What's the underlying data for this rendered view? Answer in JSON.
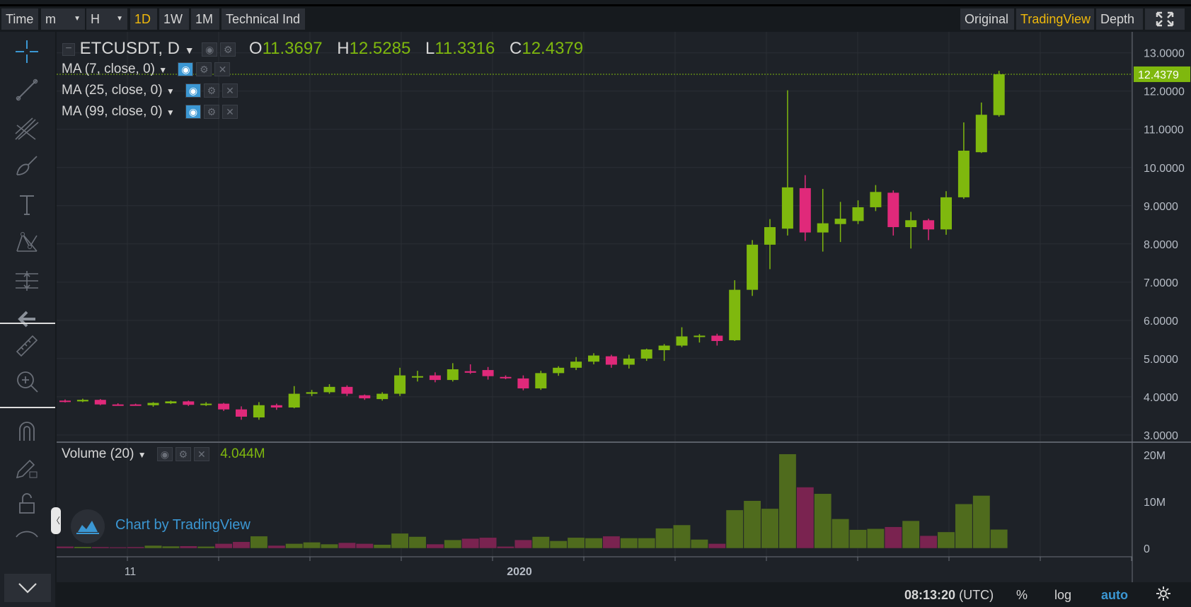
{
  "toolbar": {
    "time": "Time",
    "minute": "m",
    "hour": "H",
    "intervals": [
      "1D",
      "1W",
      "1M"
    ],
    "technical": "Technical Ind",
    "views": [
      "Original",
      "TradingView",
      "Depth"
    ]
  },
  "legend": {
    "symbol": "ETCUSDT, D",
    "o_label": "O",
    "o_value": "11.3697",
    "h_label": "H",
    "h_value": "12.5285",
    "l_label": "L",
    "l_value": "11.3316",
    "c_label": "C",
    "c_value": "12.4379",
    "ma": [
      "MA (7, close, 0)",
      "MA (25, close, 0)",
      "MA (99, close, 0)"
    ],
    "volume_label": "Volume (20)",
    "volume_value": "4.044M"
  },
  "branding": "Chart by TradingView",
  "footer": {
    "clock": "08:13:20",
    "tz": "(UTC)",
    "percent": "%",
    "log": "log",
    "auto": "auto"
  },
  "colors": {
    "up": "#7fb80e",
    "down": "#e0297a",
    "up_volume": "#4f6b1d",
    "down_volume": "#7a2350",
    "accent": "#f0b90b",
    "blue": "#3b97d3"
  },
  "chart_data": {
    "type": "candlestick",
    "symbol": "ETCUSDT",
    "interval": "D",
    "price_axis": {
      "ticks": [
        "13.0000",
        "12.0000",
        "11.0000",
        "10.0000",
        "9.0000",
        "8.0000",
        "7.0000",
        "6.0000",
        "5.0000",
        "4.0000",
        "3.0000"
      ],
      "range": [
        2.85,
        13.55
      ],
      "last_price_label": "12.4379"
    },
    "volume_axis": {
      "ticks": [
        "20M",
        "10M",
        "0"
      ],
      "range": [
        0,
        20000000
      ]
    },
    "time_axis": {
      "labels": [
        "11",
        "2020"
      ]
    },
    "candles": [
      {
        "o": 3.9,
        "h": 3.93,
        "l": 3.85,
        "c": 3.87,
        "v": 400000
      },
      {
        "o": 3.88,
        "h": 3.95,
        "l": 3.86,
        "c": 3.92,
        "v": 350000
      },
      {
        "o": 3.92,
        "h": 3.94,
        "l": 3.78,
        "c": 3.8,
        "v": 300000
      },
      {
        "o": 3.8,
        "h": 3.83,
        "l": 3.77,
        "c": 3.79,
        "v": 250000
      },
      {
        "o": 3.8,
        "h": 3.82,
        "l": 3.77,
        "c": 3.79,
        "v": 300000
      },
      {
        "o": 3.78,
        "h": 3.86,
        "l": 3.74,
        "c": 3.84,
        "v": 600000
      },
      {
        "o": 3.83,
        "h": 3.9,
        "l": 3.81,
        "c": 3.88,
        "v": 450000
      },
      {
        "o": 3.88,
        "h": 3.9,
        "l": 3.76,
        "c": 3.79,
        "v": 500000
      },
      {
        "o": 3.79,
        "h": 3.86,
        "l": 3.76,
        "c": 3.82,
        "v": 400000
      },
      {
        "o": 3.82,
        "h": 3.84,
        "l": 3.63,
        "c": 3.67,
        "v": 1000000
      },
      {
        "o": 3.67,
        "h": 3.75,
        "l": 3.4,
        "c": 3.48,
        "v": 1400000
      },
      {
        "o": 3.46,
        "h": 3.86,
        "l": 3.4,
        "c": 3.78,
        "v": 2600000
      },
      {
        "o": 3.78,
        "h": 3.82,
        "l": 3.66,
        "c": 3.72,
        "v": 600000
      },
      {
        "o": 3.72,
        "h": 4.28,
        "l": 3.7,
        "c": 4.08,
        "v": 1000000
      },
      {
        "o": 4.08,
        "h": 4.18,
        "l": 4.02,
        "c": 4.12,
        "v": 1300000
      },
      {
        "o": 4.12,
        "h": 4.33,
        "l": 4.08,
        "c": 4.26,
        "v": 900000
      },
      {
        "o": 4.26,
        "h": 4.3,
        "l": 4.02,
        "c": 4.08,
        "v": 1200000
      },
      {
        "o": 4.04,
        "h": 4.06,
        "l": 3.92,
        "c": 3.96,
        "v": 1000000
      },
      {
        "o": 3.94,
        "h": 4.12,
        "l": 3.9,
        "c": 4.08,
        "v": 800000
      },
      {
        "o": 4.08,
        "h": 4.76,
        "l": 4.02,
        "c": 4.56,
        "v": 3200000
      },
      {
        "o": 4.52,
        "h": 4.68,
        "l": 4.4,
        "c": 4.54,
        "v": 2500000
      },
      {
        "o": 4.56,
        "h": 4.64,
        "l": 4.38,
        "c": 4.44,
        "v": 900000
      },
      {
        "o": 4.44,
        "h": 4.88,
        "l": 4.4,
        "c": 4.72,
        "v": 1800000
      },
      {
        "o": 4.67,
        "h": 4.85,
        "l": 4.6,
        "c": 4.63,
        "v": 2100000
      },
      {
        "o": 4.7,
        "h": 4.78,
        "l": 4.45,
        "c": 4.54,
        "v": 2300000
      },
      {
        "o": 4.52,
        "h": 4.56,
        "l": 4.46,
        "c": 4.5,
        "v": 400000
      },
      {
        "o": 4.48,
        "h": 4.56,
        "l": 4.17,
        "c": 4.22,
        "v": 1800000
      },
      {
        "o": 4.22,
        "h": 4.68,
        "l": 4.18,
        "c": 4.62,
        "v": 2500000
      },
      {
        "o": 4.62,
        "h": 4.8,
        "l": 4.55,
        "c": 4.76,
        "v": 1600000
      },
      {
        "o": 4.76,
        "h": 5.04,
        "l": 4.7,
        "c": 4.92,
        "v": 2300000
      },
      {
        "o": 4.92,
        "h": 5.14,
        "l": 4.85,
        "c": 5.08,
        "v": 2200000
      },
      {
        "o": 5.06,
        "h": 5.1,
        "l": 4.76,
        "c": 4.84,
        "v": 2600000
      },
      {
        "o": 4.84,
        "h": 5.1,
        "l": 4.74,
        "c": 5.0,
        "v": 2200000
      },
      {
        "o": 5.0,
        "h": 5.26,
        "l": 4.94,
        "c": 5.24,
        "v": 2200000
      },
      {
        "o": 5.22,
        "h": 5.38,
        "l": 4.94,
        "c": 5.34,
        "v": 4300000
      },
      {
        "o": 5.34,
        "h": 5.82,
        "l": 5.3,
        "c": 5.58,
        "v": 5000000
      },
      {
        "o": 5.58,
        "h": 5.64,
        "l": 5.42,
        "c": 5.6,
        "v": 1900000
      },
      {
        "o": 5.6,
        "h": 5.65,
        "l": 5.34,
        "c": 5.46,
        "v": 1000000
      },
      {
        "o": 5.48,
        "h": 7.05,
        "l": 5.46,
        "c": 6.8,
        "v": 8200000
      },
      {
        "o": 6.8,
        "h": 8.1,
        "l": 6.64,
        "c": 7.98,
        "v": 10200000
      },
      {
        "o": 7.98,
        "h": 8.65,
        "l": 7.34,
        "c": 8.44,
        "v": 8500000
      },
      {
        "o": 8.4,
        "h": 12.02,
        "l": 8.22,
        "c": 9.48,
        "v": 20200000
      },
      {
        "o": 9.46,
        "h": 9.8,
        "l": 8.08,
        "c": 8.3,
        "v": 13100000
      },
      {
        "o": 8.3,
        "h": 9.44,
        "l": 7.8,
        "c": 8.54,
        "v": 11700000
      },
      {
        "o": 8.52,
        "h": 9.1,
        "l": 8.05,
        "c": 8.66,
        "v": 6300000
      },
      {
        "o": 8.6,
        "h": 9.14,
        "l": 8.52,
        "c": 8.96,
        "v": 4000000
      },
      {
        "o": 8.96,
        "h": 9.54,
        "l": 8.86,
        "c": 9.36,
        "v": 4200000
      },
      {
        "o": 9.34,
        "h": 9.4,
        "l": 8.22,
        "c": 8.44,
        "v": 4600000
      },
      {
        "o": 8.44,
        "h": 8.84,
        "l": 7.88,
        "c": 8.62,
        "v": 5900000
      },
      {
        "o": 8.62,
        "h": 8.66,
        "l": 8.1,
        "c": 8.38,
        "v": 2700000
      },
      {
        "o": 8.38,
        "h": 9.38,
        "l": 8.24,
        "c": 9.22,
        "v": 3500000
      },
      {
        "o": 9.22,
        "h": 11.18,
        "l": 9.18,
        "c": 10.44,
        "v": 9500000
      },
      {
        "o": 10.4,
        "h": 11.7,
        "l": 10.38,
        "c": 11.38,
        "v": 11300000
      },
      {
        "o": 11.37,
        "h": 12.53,
        "l": 11.33,
        "c": 12.44,
        "v": 4044000
      }
    ]
  }
}
